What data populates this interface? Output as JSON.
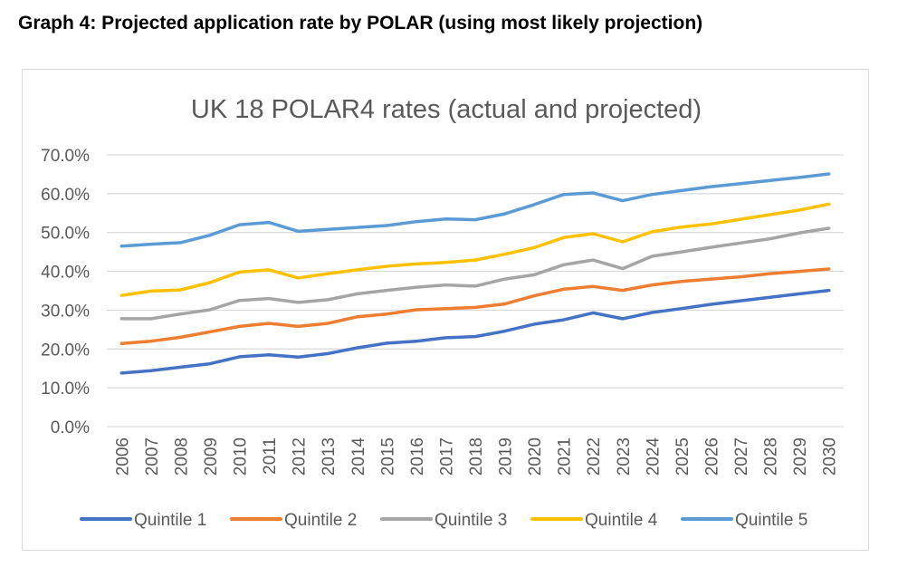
{
  "caption": "Graph 4: Projected application rate by POLAR (using most likely projection)",
  "chart_data": {
    "type": "line",
    "title": "UK 18 POLAR4 rates (actual and projected)",
    "xlabel": "",
    "ylabel": "",
    "ylim": [
      0,
      70
    ],
    "y_ticks": [
      "0.0%",
      "10.0%",
      "20.0%",
      "30.0%",
      "40.0%",
      "50.0%",
      "60.0%",
      "70.0%"
    ],
    "categories": [
      "2006",
      "2007",
      "2008",
      "2009",
      "2010",
      "2011",
      "2012",
      "2013",
      "2014",
      "2015",
      "2016",
      "2017",
      "2018",
      "2019",
      "2020",
      "2021",
      "2022",
      "2023",
      "2024",
      "2025",
      "2026",
      "2027",
      "2028",
      "2029",
      "2030"
    ],
    "grid": true,
    "legend_position": "bottom",
    "series": [
      {
        "name": "Quintile 1",
        "color": "#4472C4",
        "values": [
          13.8,
          14.4,
          15.3,
          16.2,
          18.0,
          18.5,
          17.9,
          18.8,
          20.3,
          21.5,
          22.0,
          22.9,
          23.2,
          24.6,
          26.4,
          27.5,
          29.3,
          27.8,
          29.4,
          30.4,
          31.5,
          32.4,
          33.3,
          34.2,
          35.1
        ]
      },
      {
        "name": "Quintile 2",
        "color": "#ED7D31",
        "values": [
          21.4,
          22.0,
          23.0,
          24.4,
          25.8,
          26.6,
          25.8,
          26.6,
          28.3,
          29.0,
          30.1,
          30.4,
          30.7,
          31.6,
          33.7,
          35.4,
          36.1,
          35.1,
          36.5,
          37.4,
          38.0,
          38.6,
          39.4,
          40.0,
          40.6
        ]
      },
      {
        "name": "Quintile 3",
        "color": "#A5A5A5",
        "values": [
          27.8,
          27.8,
          29.0,
          30.1,
          32.5,
          33.0,
          32.0,
          32.7,
          34.2,
          35.1,
          35.9,
          36.5,
          36.2,
          38.0,
          39.1,
          41.7,
          42.9,
          40.7,
          43.9,
          45.0,
          46.2,
          47.3,
          48.4,
          49.9,
          51.1
        ]
      },
      {
        "name": "Quintile 4",
        "color": "#FFC000",
        "values": [
          33.8,
          34.9,
          35.2,
          37.1,
          39.8,
          40.4,
          38.3,
          39.4,
          40.4,
          41.3,
          41.9,
          42.3,
          42.9,
          44.4,
          46.1,
          48.7,
          49.7,
          47.6,
          50.2,
          51.4,
          52.2,
          53.4,
          54.6,
          55.8,
          57.3
        ]
      },
      {
        "name": "Quintile 5",
        "color": "#5B9BD5",
        "values": [
          46.5,
          47.0,
          47.4,
          49.3,
          52.0,
          52.6,
          50.3,
          50.8,
          51.3,
          51.8,
          52.8,
          53.5,
          53.3,
          54.8,
          57.2,
          59.8,
          60.2,
          58.2,
          59.8,
          60.8,
          61.8,
          62.6,
          63.4,
          64.2,
          65.1
        ]
      }
    ]
  }
}
